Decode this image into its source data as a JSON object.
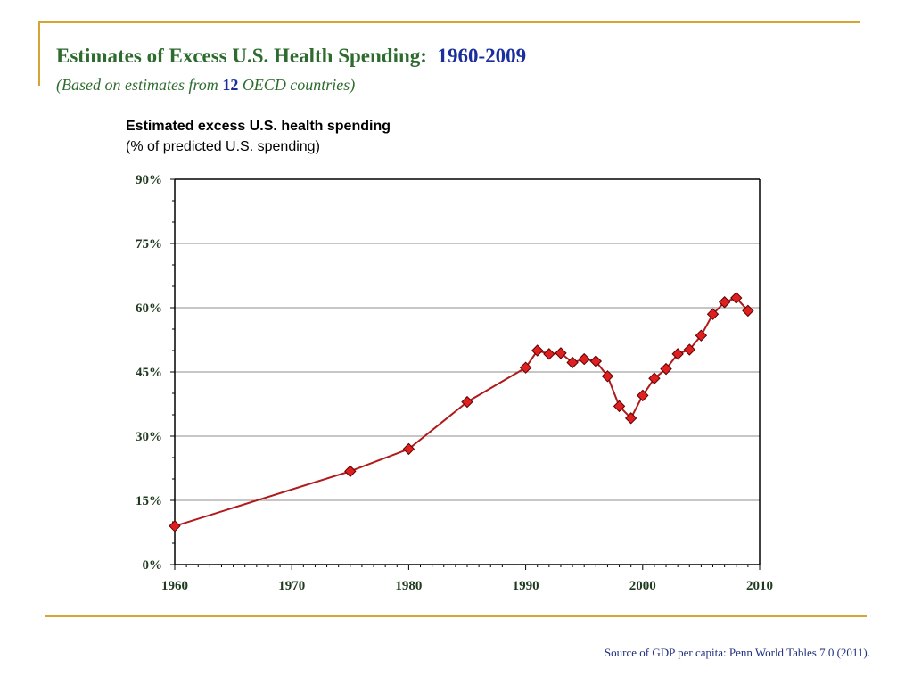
{
  "slide": {
    "title_main": "Estimates of Excess U.S. Health Spending:",
    "title_years": "1960-2009",
    "subtitle_pre": "(Based on estimates from ",
    "subtitle_num": "12",
    "subtitle_post": " OECD countries)",
    "source": "Source of GDP per capita: Penn World Tables 7.0 (2011)."
  },
  "colors": {
    "frame": "#D4A530",
    "title": "#2E6B2E",
    "accent": "#1A2F9C",
    "series_line": "#B01A1A",
    "marker_fill": "#E02020"
  },
  "chart_data": {
    "type": "line",
    "title": "Estimated excess U.S. health spending",
    "subtitle": "(% of predicted U.S. spending)",
    "xlabel": "",
    "ylabel": "",
    "xlim": [
      1960,
      2010
    ],
    "ylim": [
      0,
      90
    ],
    "x_ticks": [
      1960,
      1970,
      1980,
      1990,
      2000,
      2010
    ],
    "y_ticks": [
      0,
      15,
      30,
      45,
      60,
      75,
      90
    ],
    "y_tick_labels": [
      "0%",
      "15%",
      "30%",
      "45%",
      "60%",
      "75%",
      "90%"
    ],
    "grid": "horizontal",
    "marker": "diamond",
    "series": [
      {
        "x": [
          1960,
          1975,
          1980,
          1985,
          1990,
          1991,
          1992,
          1993,
          1994,
          1995,
          1996,
          1997,
          1998,
          1999,
          2000,
          2001,
          2002,
          2003,
          2004,
          2005,
          2006,
          2007,
          2008,
          2009
        ],
        "values": [
          9.0,
          21.8,
          27.0,
          38.0,
          46.0,
          50.0,
          49.2,
          49.4,
          47.2,
          48.0,
          47.5,
          44.0,
          37.0,
          34.2,
          39.5,
          43.5,
          45.7,
          49.2,
          50.2,
          53.5,
          58.5,
          61.3,
          62.3,
          59.3
        ]
      }
    ]
  }
}
